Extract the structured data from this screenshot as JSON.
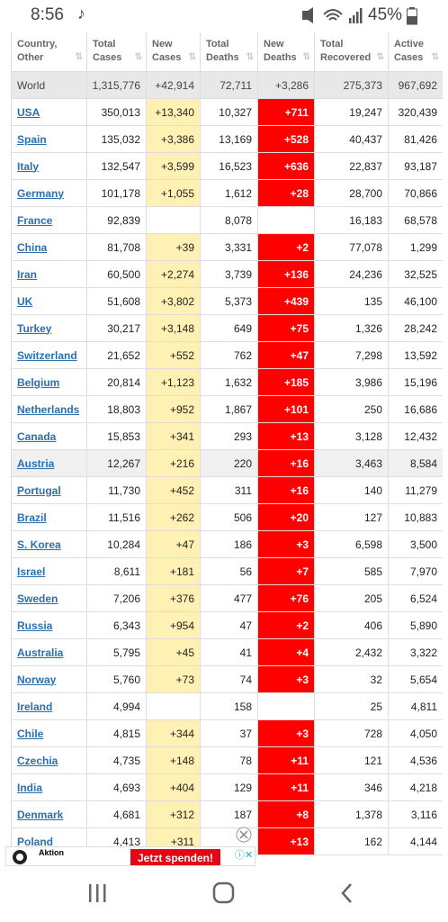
{
  "status_bar": {
    "time": "8:56",
    "battery": "45%"
  },
  "table": {
    "headers": [
      [
        "Country,",
        "Other"
      ],
      [
        "Total",
        "Cases"
      ],
      [
        "New",
        "Cases"
      ],
      [
        "Total",
        "Deaths"
      ],
      [
        "New",
        "Deaths"
      ],
      [
        "Total",
        "Recovered"
      ],
      [
        "Active",
        "Cases"
      ]
    ],
    "world": [
      "World",
      "1,315,776",
      "+42,914",
      "72,711",
      "+3,286",
      "275,373",
      "967,692"
    ],
    "rows": [
      [
        "USA",
        "350,013",
        "+13,340",
        "10,327",
        "+711",
        "19,247",
        "320,439"
      ],
      [
        "Spain",
        "135,032",
        "+3,386",
        "13,169",
        "+528",
        "40,437",
        "81,426"
      ],
      [
        "Italy",
        "132,547",
        "+3,599",
        "16,523",
        "+636",
        "22,837",
        "93,187"
      ],
      [
        "Germany",
        "101,178",
        "+1,055",
        "1,612",
        "+28",
        "28,700",
        "70,866"
      ],
      [
        "France",
        "92,839",
        null,
        "8,078",
        null,
        "16,183",
        "68,578"
      ],
      [
        "China",
        "81,708",
        "+39",
        "3,331",
        "+2",
        "77,078",
        "1,299"
      ],
      [
        "Iran",
        "60,500",
        "+2,274",
        "3,739",
        "+136",
        "24,236",
        "32,525"
      ],
      [
        "UK",
        "51,608",
        "+3,802",
        "5,373",
        "+439",
        "135",
        "46,100"
      ],
      [
        "Turkey",
        "30,217",
        "+3,148",
        "649",
        "+75",
        "1,326",
        "28,242"
      ],
      [
        "Switzerland",
        "21,652",
        "+552",
        "762",
        "+47",
        "7,298",
        "13,592"
      ],
      [
        "Belgium",
        "20,814",
        "+1,123",
        "1,632",
        "+185",
        "3,986",
        "15,196"
      ],
      [
        "Netherlands",
        "18,803",
        "+952",
        "1,867",
        "+101",
        "250",
        "16,686"
      ],
      [
        "Canada",
        "15,853",
        "+341",
        "293",
        "+13",
        "3,128",
        "12,432"
      ],
      [
        "Austria",
        "12,267",
        "+216",
        "220",
        "+16",
        "3,463",
        "8,584"
      ],
      [
        "Portugal",
        "11,730",
        "+452",
        "311",
        "+16",
        "140",
        "11,279"
      ],
      [
        "Brazil",
        "11,516",
        "+262",
        "506",
        "+20",
        "127",
        "10,883"
      ],
      [
        "S. Korea",
        "10,284",
        "+47",
        "186",
        "+3",
        "6,598",
        "3,500"
      ],
      [
        "Israel",
        "8,611",
        "+181",
        "56",
        "+7",
        "585",
        "7,970"
      ],
      [
        "Sweden",
        "7,206",
        "+376",
        "477",
        "+76",
        "205",
        "6,524"
      ],
      [
        "Russia",
        "6,343",
        "+954",
        "47",
        "+2",
        "406",
        "5,890"
      ],
      [
        "Australia",
        "5,795",
        "+45",
        "41",
        "+4",
        "2,432",
        "3,322"
      ],
      [
        "Norway",
        "5,760",
        "+73",
        "74",
        "+3",
        "32",
        "5,654"
      ],
      [
        "Ireland",
        "4,994",
        null,
        "158",
        null,
        "25",
        "4,811"
      ],
      [
        "Chile",
        "4,815",
        "+344",
        "37",
        "+3",
        "728",
        "4,050"
      ],
      [
        "Czechia",
        "4,735",
        "+148",
        "78",
        "+11",
        "121",
        "4,536"
      ],
      [
        "India",
        "4,693",
        "+404",
        "129",
        "+11",
        "346",
        "4,218"
      ],
      [
        "Denmark",
        "4,681",
        "+312",
        "187",
        "+8",
        "1,378",
        "3,116"
      ],
      [
        "Poland",
        "4,413",
        "+311",
        null,
        "+13",
        "162",
        "4,144"
      ]
    ]
  },
  "ad": {
    "title": "Aktion",
    "button": "Jetzt spenden!"
  }
}
